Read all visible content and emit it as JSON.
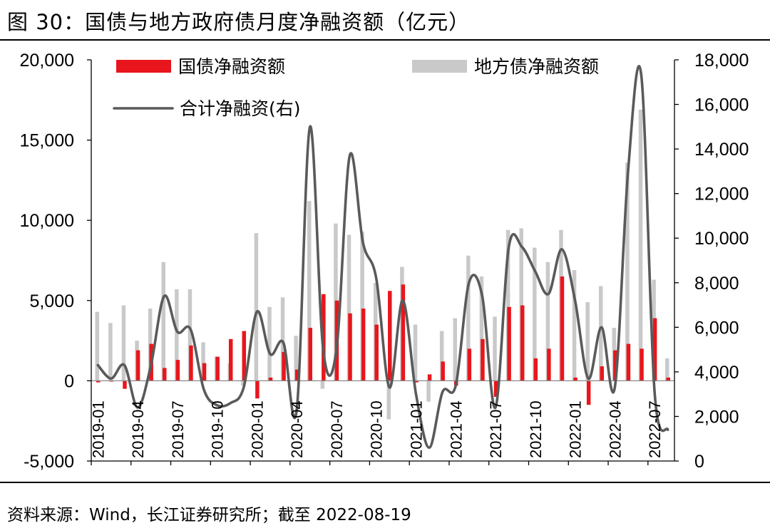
{
  "figure": {
    "title": "图 30：国债与地方政府债月度净融资额（亿元）",
    "source": "资料来源：Wind，长江证券研究所；截至 2022-08-19"
  },
  "colors": {
    "treasury": "#e8161c",
    "local": "#c9c9c9",
    "total": "#5a5a5a"
  },
  "chart_data": {
    "type": "bar",
    "x": [
      "2019-01",
      "2019-02",
      "2019-03",
      "2019-04",
      "2019-05",
      "2019-06",
      "2019-07",
      "2019-08",
      "2019-09",
      "2019-10",
      "2019-11",
      "2019-12",
      "2020-01",
      "2020-02",
      "2020-03",
      "2020-04",
      "2020-05",
      "2020-06",
      "2020-07",
      "2020-08",
      "2020-09",
      "2020-10",
      "2020-11",
      "2020-12",
      "2021-01",
      "2021-02",
      "2021-03",
      "2021-04",
      "2021-05",
      "2021-06",
      "2021-07",
      "2021-08",
      "2021-09",
      "2021-10",
      "2021-11",
      "2021-12",
      "2022-01",
      "2022-02",
      "2022-03",
      "2022-04",
      "2022-05",
      "2022-06",
      "2022-07",
      "2022-08"
    ],
    "xticks": [
      "2019-01",
      "2019-04",
      "2019-07",
      "2019-10",
      "2020-01",
      "2020-04",
      "2020-07",
      "2020-10",
      "2021-01",
      "2021-04",
      "2021-07",
      "2021-10",
      "2022-01",
      "2022-04",
      "2022-07"
    ],
    "series": [
      {
        "name": "国债净融资额",
        "type": "bar",
        "axis": "left",
        "values": [
          -100,
          -50,
          -500,
          1900,
          2300,
          800,
          1300,
          2200,
          1100,
          1500,
          2600,
          3100,
          -1100,
          200,
          1800,
          700,
          3300,
          5400,
          5000,
          4200,
          4500,
          3500,
          5600,
          6000,
          -100,
          400,
          1200,
          -300,
          2000,
          2600,
          -1000,
          4600,
          4700,
          1400,
          2000,
          6500,
          200,
          -1500,
          900,
          1900,
          2300,
          2000,
          3900,
          200
        ]
      },
      {
        "name": "地方债净融资额",
        "type": "bar",
        "axis": "left",
        "values": [
          4300,
          3600,
          4700,
          2500,
          4500,
          7400,
          5700,
          5700,
          2400,
          1500,
          1100,
          -300,
          9200,
          4600,
          5200,
          2800,
          11200,
          -500,
          9800,
          9100,
          9300,
          6100,
          -2400,
          7100,
          3500,
          -1300,
          3100,
          3900,
          7800,
          6500,
          4000,
          9400,
          9500,
          8300,
          7400,
          9400,
          6900,
          4900,
          5900,
          3300,
          13600,
          16900,
          6300,
          1400
        ]
      },
      {
        "name": "合计净融资(右)",
        "type": "line",
        "axis": "right",
        "values": [
          4300,
          3700,
          4300,
          2400,
          4300,
          7400,
          5800,
          5900,
          3200,
          2500,
          2600,
          3300,
          6700,
          4800,
          5300,
          2300,
          15000,
          5000,
          5000,
          13700,
          9800,
          8200,
          3300,
          7200,
          3000,
          600,
          3100,
          3400,
          8000,
          7400,
          2400,
          9600,
          9600,
          8500,
          7500,
          9500,
          7200,
          3700,
          6000,
          3300,
          13000,
          17300,
          3100,
          1400
        ]
      }
    ],
    "y_left": {
      "ticks": [
        "20,000",
        "15,000",
        "10,000",
        "5,000",
        "0",
        "-5,000"
      ],
      "min": -5000,
      "max": 20000
    },
    "y_right": {
      "ticks": [
        "18,000",
        "16,000",
        "14,000",
        "12,000",
        "10,000",
        "8,000",
        "6,000",
        "4,000",
        "2,000",
        "0"
      ],
      "min": 0,
      "max": 18000
    },
    "legend_placement": "top",
    "grid": false
  }
}
